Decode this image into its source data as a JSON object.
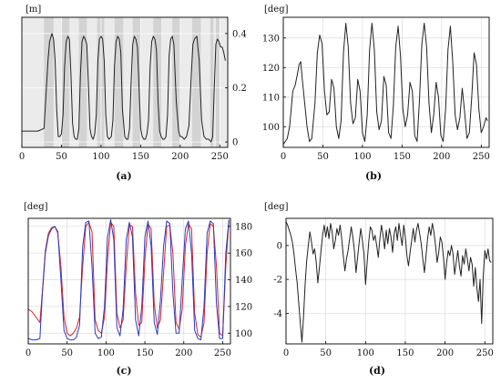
{
  "figure": {
    "panels": [
      {
        "id": "a",
        "caption": "(a)",
        "unit_label": "[m]",
        "unit_side": "left",
        "tick_side": "right",
        "shaded_background": true,
        "colors": {
          "line": "#222222",
          "band": "#d3d3d3",
          "background": "#ebebeb"
        }
      },
      {
        "id": "b",
        "caption": "(b)",
        "unit_label": "[deg]",
        "unit_side": "left",
        "tick_side": "left",
        "colors": {
          "line": "#222222"
        }
      },
      {
        "id": "c",
        "caption": "(c)",
        "unit_label": "[deg]",
        "unit_side": "left",
        "tick_side": "right",
        "colors": {
          "series": [
            "#d8232a",
            "#2a3bbf"
          ]
        }
      },
      {
        "id": "d",
        "caption": "(d)",
        "unit_label": "[deg]",
        "unit_side": "left",
        "tick_side": "left",
        "colors": {
          "line": "#222222"
        }
      }
    ]
  },
  "chart_data": [
    {
      "panel": "a",
      "type": "line",
      "xlim": [
        0,
        260
      ],
      "ylim": [
        -0.02,
        0.46
      ],
      "xticks": [
        0,
        50,
        100,
        150,
        200,
        250
      ],
      "yticks": [
        0,
        0.2,
        0.4
      ],
      "grid": true,
      "shaded_intervals": [
        [
          28,
          40
        ],
        [
          50,
          60
        ],
        [
          72,
          82
        ],
        [
          95,
          104
        ],
        [
          117,
          128
        ],
        [
          140,
          150
        ],
        [
          166,
          176
        ],
        [
          190,
          200
        ],
        [
          215,
          226
        ],
        [
          238,
          242
        ],
        [
          245,
          250
        ]
      ],
      "series": [
        {
          "x": [
            0,
            10,
            20,
            28,
            30,
            33,
            35,
            38,
            40,
            42,
            44,
            46,
            48,
            50,
            52,
            54,
            56,
            58,
            60,
            62,
            64,
            66,
            68,
            70,
            72,
            74,
            76,
            78,
            80,
            82,
            84,
            86,
            88,
            90,
            92,
            94,
            96,
            98,
            100,
            102,
            104,
            106,
            108,
            110,
            113,
            115,
            117,
            119,
            121,
            123,
            125,
            127,
            130,
            132,
            134,
            136,
            138,
            140,
            142,
            144,
            146,
            148,
            150,
            152,
            154,
            156,
            158,
            160,
            162,
            164,
            166,
            168,
            170,
            172,
            174,
            176,
            178,
            180,
            182,
            184,
            186,
            188,
            190,
            192,
            195,
            198,
            200,
            202,
            205,
            208,
            211,
            214,
            216,
            218,
            221,
            224,
            227,
            230,
            233,
            236,
            239,
            241,
            243,
            245,
            247,
            249,
            251,
            253,
            255,
            257
          ],
          "y": [
            0.04,
            0.04,
            0.04,
            0.05,
            0.15,
            0.3,
            0.37,
            0.4,
            0.38,
            0.3,
            0.12,
            0.02,
            0.02,
            0.03,
            0.1,
            0.28,
            0.37,
            0.39,
            0.38,
            0.25,
            0.07,
            0.02,
            0.01,
            0.01,
            0.05,
            0.25,
            0.37,
            0.39,
            0.38,
            0.36,
            0.22,
            0.05,
            0.02,
            0.01,
            0.03,
            0.1,
            0.3,
            0.38,
            0.39,
            0.38,
            0.3,
            0.1,
            0.02,
            0.01,
            0.02,
            0.08,
            0.28,
            0.37,
            0.39,
            0.38,
            0.33,
            0.12,
            0.02,
            0.01,
            0.01,
            0.05,
            0.22,
            0.36,
            0.39,
            0.38,
            0.35,
            0.2,
            0.05,
            0.02,
            0.01,
            0.01,
            0.03,
            0.08,
            0.28,
            0.37,
            0.39,
            0.38,
            0.34,
            0.15,
            0.04,
            0.02,
            0.01,
            0.01,
            0.02,
            0.1,
            0.32,
            0.38,
            0.39,
            0.36,
            0.15,
            0.04,
            0.02,
            0.02,
            0.01,
            0.02,
            0.06,
            0.25,
            0.36,
            0.38,
            0.39,
            0.3,
            0.08,
            0.02,
            0.01,
            0.01,
            0.0,
            0.02,
            0.2,
            0.36,
            0.38,
            0.37,
            0.35,
            0.35,
            0.33,
            0.3
          ]
        }
      ]
    },
    {
      "panel": "b",
      "type": "line",
      "xlim": [
        0,
        260
      ],
      "ylim": [
        93,
        137
      ],
      "xticks": [
        0,
        50,
        100,
        150,
        200,
        250
      ],
      "yticks": [
        100,
        110,
        120,
        130
      ],
      "grid": true,
      "series": [
        {
          "x": [
            0,
            5,
            8,
            12,
            15,
            18,
            20,
            22,
            24,
            27,
            30,
            33,
            36,
            40,
            43,
            46,
            49,
            52,
            55,
            58,
            61,
            64,
            67,
            70,
            73,
            76,
            79,
            82,
            85,
            88,
            91,
            94,
            97,
            100,
            103,
            106,
            109,
            112,
            115,
            118,
            121,
            124,
            127,
            130,
            133,
            136,
            139,
            142,
            145,
            148,
            151,
            154,
            157,
            160,
            163,
            166,
            169,
            172,
            175,
            178,
            181,
            184,
            187,
            190,
            193,
            196,
            199,
            202,
            205,
            208,
            211,
            214,
            217,
            220,
            223,
            226,
            229,
            232,
            235,
            238,
            241,
            244,
            247,
            250,
            253,
            256,
            258
          ],
          "y": [
            94,
            96,
            100,
            112,
            114,
            118,
            121,
            122,
            116,
            108,
            100,
            95,
            96,
            108,
            125,
            131,
            128,
            112,
            104,
            105,
            116,
            113,
            100,
            96,
            102,
            125,
            135,
            127,
            108,
            101,
            103,
            116,
            112,
            98,
            95,
            104,
            126,
            135,
            126,
            105,
            99,
            102,
            117,
            114,
            98,
            96,
            107,
            127,
            134,
            124,
            106,
            100,
            104,
            115,
            112,
            97,
            95,
            109,
            128,
            135,
            127,
            108,
            98,
            104,
            115,
            110,
            97,
            95,
            106,
            126,
            134,
            122,
            104,
            99,
            103,
            113,
            105,
            96,
            98,
            110,
            125,
            121,
            106,
            98,
            100,
            103,
            102
          ]
        }
      ]
    },
    {
      "panel": "c",
      "type": "line",
      "xlim": [
        0,
        260
      ],
      "ylim": [
        92,
        186
      ],
      "xticks": [
        0,
        50,
        100,
        150,
        200,
        250
      ],
      "yticks": [
        100,
        120,
        140,
        160,
        180
      ],
      "grid": true,
      "series": [
        {
          "x": [
            0,
            5,
            10,
            15,
            18,
            22,
            26,
            30,
            34,
            38,
            42,
            46,
            50,
            54,
            58,
            62,
            66,
            70,
            74,
            78,
            82,
            86,
            90,
            94,
            98,
            102,
            106,
            110,
            114,
            118,
            122,
            126,
            130,
            134,
            138,
            142,
            146,
            150,
            154,
            158,
            162,
            166,
            170,
            174,
            178,
            182,
            186,
            190,
            194,
            198,
            202,
            206,
            210,
            214,
            218,
            222,
            226,
            230,
            234,
            238,
            242,
            246,
            250,
            254,
            258
          ],
          "y": [
            118,
            116,
            112,
            108,
            130,
            162,
            175,
            179,
            180,
            175,
            150,
            112,
            100,
            98,
            100,
            104,
            112,
            150,
            180,
            183,
            176,
            110,
            102,
            100,
            112,
            155,
            183,
            180,
            115,
            104,
            110,
            150,
            181,
            180,
            130,
            106,
            108,
            155,
            182,
            178,
            122,
            104,
            110,
            145,
            180,
            181,
            160,
            108,
            103,
            118,
            165,
            182,
            178,
            115,
            99,
            97,
            108,
            160,
            182,
            180,
            150,
            100,
            98,
            150,
            184
          ]
        },
        {
          "x": [
            0,
            5,
            10,
            15,
            18,
            22,
            26,
            30,
            34,
            38,
            42,
            46,
            50,
            54,
            58,
            62,
            66,
            70,
            74,
            78,
            82,
            86,
            90,
            94,
            98,
            102,
            106,
            110,
            114,
            118,
            122,
            126,
            130,
            134,
            138,
            142,
            146,
            150,
            154,
            158,
            162,
            166,
            170,
            174,
            178,
            182,
            186,
            190,
            194,
            198,
            202,
            206,
            210,
            214,
            218,
            222,
            226,
            230,
            234,
            238,
            242,
            246,
            250,
            254,
            258
          ],
          "y": [
            96,
            95,
            95,
            96,
            128,
            160,
            173,
            178,
            180,
            176,
            140,
            102,
            96,
            95,
            95,
            97,
            106,
            165,
            183,
            184,
            150,
            100,
            96,
            97,
            120,
            172,
            185,
            170,
            104,
            98,
            118,
            170,
            183,
            172,
            110,
            98,
            120,
            172,
            184,
            165,
            108,
            99,
            125,
            165,
            184,
            182,
            130,
            100,
            100,
            140,
            178,
            184,
            160,
            102,
            96,
            95,
            120,
            175,
            184,
            182,
            122,
            96,
            96,
            160,
            185
          ]
        }
      ]
    },
    {
      "panel": "d",
      "type": "line",
      "xlim": [
        0,
        260
      ],
      "ylim": [
        -5.8,
        1.6
      ],
      "xticks": [
        0,
        50,
        100,
        150,
        200,
        250
      ],
      "yticks": [
        -4,
        -2,
        0
      ],
      "grid": true,
      "series": [
        {
          "x": [
            0,
            2,
            4,
            6,
            8,
            10,
            12,
            14,
            16,
            18,
            20,
            22,
            24,
            26,
            28,
            30,
            32,
            34,
            36,
            38,
            40,
            42,
            44,
            46,
            48,
            50,
            52,
            54,
            56,
            58,
            60,
            62,
            64,
            66,
            68,
            70,
            72,
            74,
            76,
            78,
            80,
            82,
            84,
            86,
            88,
            90,
            92,
            94,
            96,
            98,
            100,
            102,
            104,
            106,
            108,
            110,
            112,
            114,
            116,
            118,
            120,
            122,
            124,
            126,
            128,
            130,
            132,
            134,
            136,
            138,
            140,
            142,
            144,
            146,
            148,
            150,
            152,
            154,
            156,
            158,
            160,
            162,
            164,
            166,
            168,
            170,
            172,
            174,
            176,
            178,
            180,
            182,
            184,
            186,
            188,
            190,
            192,
            194,
            196,
            198,
            200,
            202,
            204,
            206,
            208,
            210,
            212,
            214,
            216,
            218,
            220,
            222,
            224,
            226,
            228,
            230,
            232,
            234,
            236,
            238,
            240,
            242,
            244,
            246,
            248,
            250,
            252,
            254,
            256,
            258
          ],
          "y": [
            1.4,
            1.2,
            0.9,
            0.6,
            0.2,
            -0.5,
            -1.4,
            -2.2,
            -3.4,
            -4.6,
            -5.7,
            -4.2,
            -2.3,
            -0.9,
            0.0,
            0.8,
            0.2,
            -0.5,
            -0.2,
            -1.0,
            -2.2,
            -1.3,
            -0.3,
            0.6,
            1.2,
            0.5,
            1.1,
            0.4,
            1.3,
            0.8,
            -0.2,
            0.3,
            1.0,
            0.6,
            1.2,
            0.4,
            -0.6,
            -1.5,
            -0.8,
            -0.3,
            0.4,
            1.1,
            0.5,
            -0.3,
            -1.6,
            -0.7,
            0.2,
            1.0,
            0.3,
            -0.5,
            -2.3,
            -1.0,
            0.2,
            1.1,
            0.9,
            0.3,
            0.6,
            0.0,
            -0.7,
            0.4,
            1.2,
            0.6,
            -0.2,
            0.9,
            0.1,
            1.0,
            0.5,
            -0.4,
            0.7,
            1.1,
            0.3,
            1.3,
            0.6,
            0.0,
            1.2,
            0.5,
            -0.6,
            -1.2,
            -0.4,
            0.3,
            1.0,
            0.2,
            0.9,
            1.3,
            0.7,
            0.1,
            -0.8,
            -1.6,
            -0.6,
            0.4,
            1.1,
            0.6,
            1.3,
            0.8,
            0.0,
            -1.0,
            -0.4,
            0.5,
            0.2,
            -0.7,
            -2.0,
            -1.0,
            -0.3,
            -0.6,
            0.0,
            -0.5,
            -1.7,
            -1.0,
            -0.3,
            -1.2,
            -1.8,
            -0.6,
            -1.1,
            -0.2,
            -0.8,
            -1.5,
            -0.7,
            -1.1,
            -2.4,
            -1.3,
            -2.5,
            -3.3,
            -2.0,
            -4.6,
            -1.8,
            -0.3,
            -0.8,
            -0.2,
            -0.9,
            -1.0
          ]
        }
      ]
    }
  ]
}
